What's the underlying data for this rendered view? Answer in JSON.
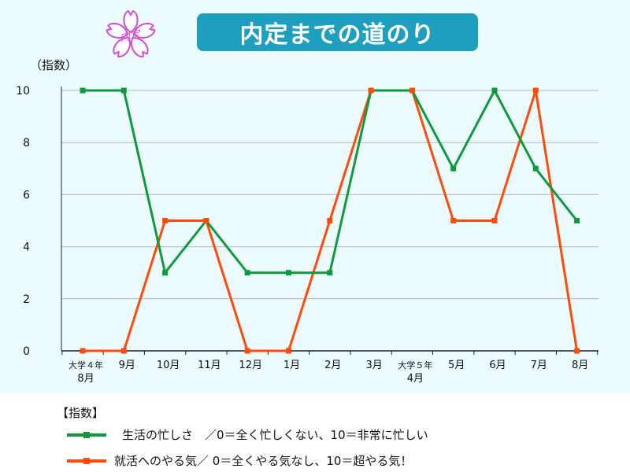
{
  "title": "内定までの道のり",
  "badge_text": "内定",
  "y_unit_label": "（指数）",
  "legend": {
    "title": "【指数】",
    "items": [
      {
        "label": "生活の忙しさ　／0＝全く忙しくない、10＝非常に忙しい",
        "color": "#0e9a3c"
      },
      {
        "label": "就活へのやる気／ 0＝全くやる気なし、10＝超やる気！",
        "color": "#ff4a0a"
      }
    ]
  },
  "colors": {
    "panel_bg": "#ecfbfd",
    "title_bg": "#1e9fc0",
    "sakura": "#d24fd3"
  },
  "chart_data": {
    "type": "line",
    "categories": [
      [
        "大学４年",
        "8月"
      ],
      [
        "9月"
      ],
      [
        "10月"
      ],
      [
        "11月"
      ],
      [
        "12月"
      ],
      [
        "1月"
      ],
      [
        "2月"
      ],
      [
        "3月"
      ],
      [
        "大学５年",
        "4月"
      ],
      [
        "5月"
      ],
      [
        "6月"
      ],
      [
        "7月"
      ],
      [
        "8月"
      ]
    ],
    "ylim": [
      0,
      10
    ],
    "yticks": [
      0,
      2,
      4,
      6,
      8,
      10
    ],
    "grid": true,
    "series": [
      {
        "name": "生活の忙しさ",
        "color": "#0e9a3c",
        "values": [
          10,
          10,
          3,
          5,
          3,
          3,
          3,
          10,
          10,
          7,
          10,
          7,
          5
        ]
      },
      {
        "name": "就活へのやる気",
        "color": "#ff4a0a",
        "values": [
          0,
          0,
          5,
          5,
          0,
          0,
          5,
          10,
          10,
          5,
          5,
          10,
          0
        ]
      }
    ]
  }
}
